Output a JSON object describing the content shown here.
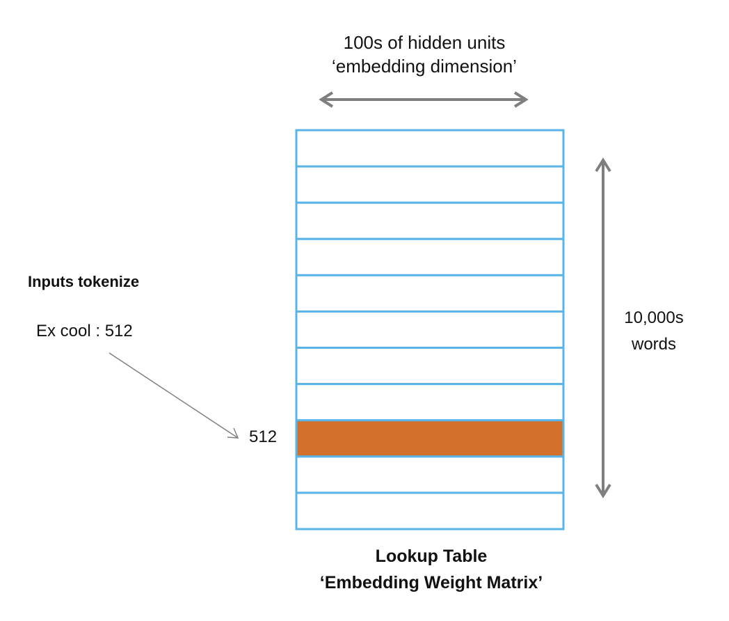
{
  "top_label": {
    "line1": "100s of hidden units",
    "line2": "‘embedding dimension’"
  },
  "inputs": {
    "title": "Inputs tokenize",
    "example": "Ex cool : 512"
  },
  "highlighted_row": {
    "label": "512",
    "index": 8
  },
  "vocab_label": {
    "line1": "10,000s",
    "line2": "words"
  },
  "table": {
    "row_count": 11,
    "title_line1": "Lookup Table",
    "title_line2": "‘Embedding Weight Matrix’"
  },
  "colors": {
    "grid": "#5ab4e8",
    "highlight": "#d2702c",
    "arrow": "#7f7f7f"
  }
}
